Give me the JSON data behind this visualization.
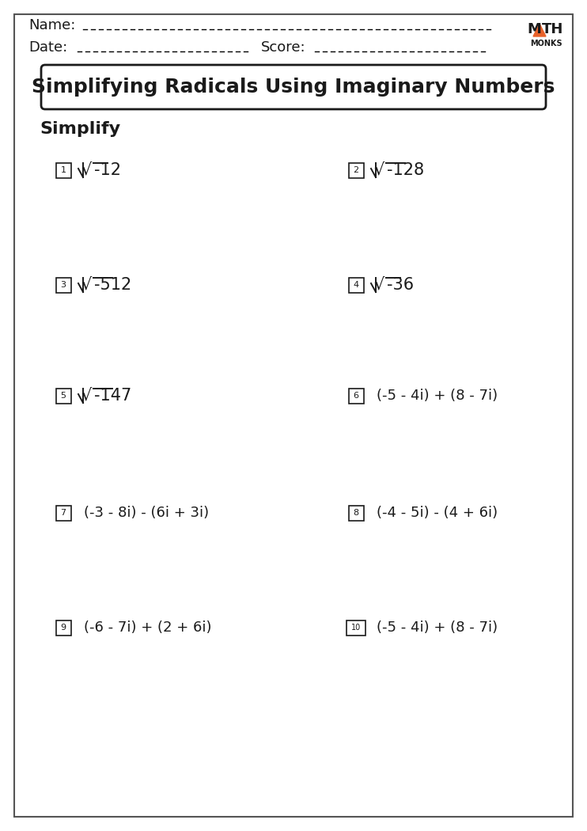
{
  "title": "Simplifying Radicals Using Imaginary Numbers",
  "section_label": "Simplify",
  "bg_color": "#ffffff",
  "border_color": "#555555",
  "problems": [
    {
      "num": "1",
      "expr": "-12",
      "col": 0,
      "row": 0,
      "type": "radical"
    },
    {
      "num": "2",
      "expr": "-128",
      "col": 1,
      "row": 0,
      "type": "radical"
    },
    {
      "num": "3",
      "expr": "-512",
      "col": 0,
      "row": 1,
      "type": "radical"
    },
    {
      "num": "4",
      "expr": "-36",
      "col": 1,
      "row": 1,
      "type": "radical"
    },
    {
      "num": "5",
      "expr": "-147",
      "col": 0,
      "row": 2,
      "type": "radical"
    },
    {
      "num": "6",
      "expr": "(-5 - 4i) + (8 - 7i)",
      "col": 1,
      "row": 2,
      "type": "complex"
    },
    {
      "num": "7",
      "expr": "(-3 - 8i) - (6i + 3i)",
      "col": 0,
      "row": 3,
      "type": "complex"
    },
    {
      "num": "8",
      "expr": "(-4 - 5i) - (4 + 6i)",
      "col": 1,
      "row": 3,
      "type": "complex"
    },
    {
      "num": "9",
      "expr": "(-6 - 7i) + (2 + 6i)",
      "col": 0,
      "row": 4,
      "type": "complex"
    },
    {
      "num": "10",
      "expr": "(-5 - 4i) + (8 - 7i)",
      "col": 1,
      "row": 4,
      "type": "complex"
    }
  ],
  "logo_color": "#E8622A",
  "text_color": "#1a1a1a",
  "box_color": "#1a1a1a",
  "name_label": "Name:",
  "date_label": "Date:",
  "score_label": "Score:"
}
